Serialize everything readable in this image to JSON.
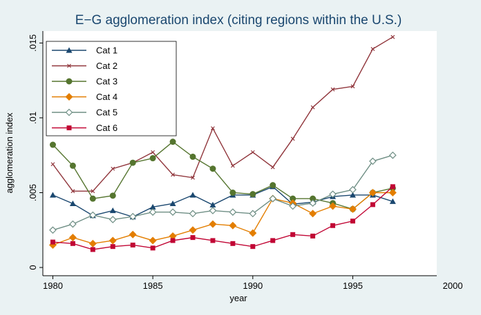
{
  "chart_data": {
    "type": "line",
    "title": "E−G agglomeration index (citing regions within the U.S.)",
    "x_label": "year",
    "y_label": "agglomeration index",
    "x": [
      1980,
      1981,
      1982,
      1983,
      1984,
      1985,
      1986,
      1987,
      1988,
      1989,
      1990,
      1991,
      1992,
      1993,
      1994,
      1995,
      1996,
      1997
    ],
    "xlim": [
      1979.5,
      1999.2
    ],
    "xticks": [
      1980,
      1985,
      1990,
      1995,
      2000
    ],
    "ylim": [
      -0.00055,
      0.0158
    ],
    "yticks": [
      0,
      {
        "value": 0.005,
        "label": ".005"
      },
      {
        "value": 0.01,
        "label": ".01"
      },
      {
        "value": 0.015,
        "label": ".015"
      }
    ],
    "legend": "top-left",
    "series": [
      {
        "name": "Cat 1",
        "color": "#1a476f",
        "marker": "triangle",
        "values": [
          0.00484,
          0.00427,
          0.00347,
          0.0038,
          0.00338,
          0.00404,
          0.00427,
          0.00484,
          0.00418,
          0.00484,
          0.00484,
          0.0054,
          0.00423,
          0.00437,
          0.00474,
          0.00484,
          0.00484,
          0.00441
        ]
      },
      {
        "name": "Cat 2",
        "color": "#90353b",
        "marker": "x",
        "values": [
          0.0069,
          0.0051,
          0.0051,
          0.0066,
          0.007,
          0.0077,
          0.0062,
          0.006,
          0.0093,
          0.0068,
          0.0077,
          0.0067,
          0.0086,
          0.0107,
          0.0119,
          0.0121,
          0.0146,
          0.0154
        ]
      },
      {
        "name": "Cat 3",
        "color": "#55752f",
        "marker": "circle",
        "values": [
          0.0082,
          0.0068,
          0.0046,
          0.0048,
          0.007,
          0.0073,
          0.0084,
          0.0074,
          0.0066,
          0.005,
          0.0049,
          0.0055,
          0.0046,
          0.0046,
          0.0043,
          0.0039,
          0.005,
          0.0053
        ]
      },
      {
        "name": "Cat 4",
        "color": "#e37e00",
        "marker": "diamond",
        "values": [
          0.0015,
          0.002,
          0.0016,
          0.0018,
          0.0022,
          0.0018,
          0.0021,
          0.0025,
          0.0029,
          0.0028,
          0.0023,
          0.0046,
          0.0043,
          0.0036,
          0.0041,
          0.0039,
          0.005,
          0.005
        ]
      },
      {
        "name": "Cat 5",
        "color": "#6e8e84",
        "marker": "diamond-hollow",
        "values": [
          0.0025,
          0.0029,
          0.0035,
          0.0032,
          0.0034,
          0.0037,
          0.0037,
          0.0036,
          0.0038,
          0.0037,
          0.0036,
          0.0046,
          0.0041,
          0.0043,
          0.0049,
          0.0052,
          0.0071,
          0.0075
        ]
      },
      {
        "name": "Cat 6",
        "color": "#c10534",
        "marker": "square",
        "values": [
          0.0017,
          0.0016,
          0.0012,
          0.0014,
          0.0015,
          0.0013,
          0.0018,
          0.002,
          0.0018,
          0.0016,
          0.0014,
          0.0018,
          0.0022,
          0.0021,
          0.0028,
          0.0031,
          0.0042,
          0.0054
        ]
      }
    ]
  }
}
